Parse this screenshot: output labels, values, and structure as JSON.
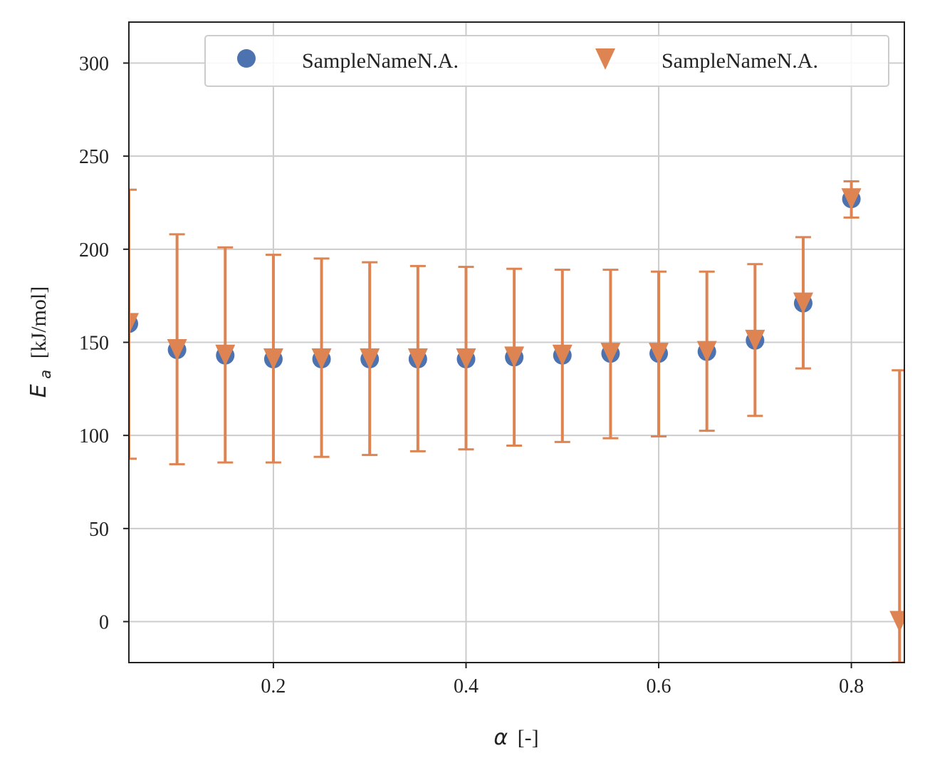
{
  "chart_data": {
    "type": "scatter",
    "xlabel_symbol": "α",
    "xlabel_unit": "[-]",
    "ylabel_symbol": "E",
    "ylabel_subscript": "a",
    "ylabel_unit": "[kJ/mol]",
    "xlim": [
      0.05,
      0.855
    ],
    "ylim": [
      -22,
      322
    ],
    "xticks": [
      0.2,
      0.4,
      0.6,
      0.8
    ],
    "xtick_labels": [
      "0.2",
      "0.4",
      "0.6",
      "0.8"
    ],
    "yticks": [
      0,
      50,
      100,
      150,
      200,
      250,
      300
    ],
    "ytick_labels": [
      "0",
      "50",
      "100",
      "150",
      "200",
      "250",
      "300"
    ],
    "grid": true,
    "legend_position": "top-right",
    "series": [
      {
        "name": "SampleNameN.A.",
        "marker": "circle",
        "color": "#4c72b0",
        "x": [
          0.05,
          0.1,
          0.15,
          0.2,
          0.25,
          0.3,
          0.35,
          0.4,
          0.45,
          0.5,
          0.55,
          0.6,
          0.65,
          0.7,
          0.75,
          0.8
        ],
        "y": [
          160,
          146,
          143,
          141,
          141,
          141,
          141,
          141,
          142,
          143,
          144,
          144,
          145,
          151,
          171,
          227
        ]
      },
      {
        "name": "SampleNameN.A.",
        "marker": "triangle-down",
        "color": "#dd8452",
        "x": [
          0.05,
          0.1,
          0.15,
          0.2,
          0.25,
          0.3,
          0.35,
          0.4,
          0.45,
          0.5,
          0.55,
          0.6,
          0.65,
          0.7,
          0.75,
          0.8,
          0.85
        ],
        "y": [
          160,
          146,
          143,
          141,
          141,
          141,
          141,
          141,
          142,
          143,
          144,
          144,
          145,
          151,
          171,
          227,
          0
        ],
        "err_low": [
          87.5,
          84.5,
          85.5,
          85.5,
          88.5,
          89.5,
          91.5,
          92.5,
          94.5,
          96.5,
          98.5,
          99.5,
          102.5,
          110.5,
          136,
          217,
          -22
        ],
        "err_high": [
          232,
          208,
          201,
          197,
          195,
          193,
          191,
          190.5,
          189.5,
          189,
          189,
          188,
          188,
          192,
          206.5,
          236.5,
          135
        ]
      }
    ]
  }
}
